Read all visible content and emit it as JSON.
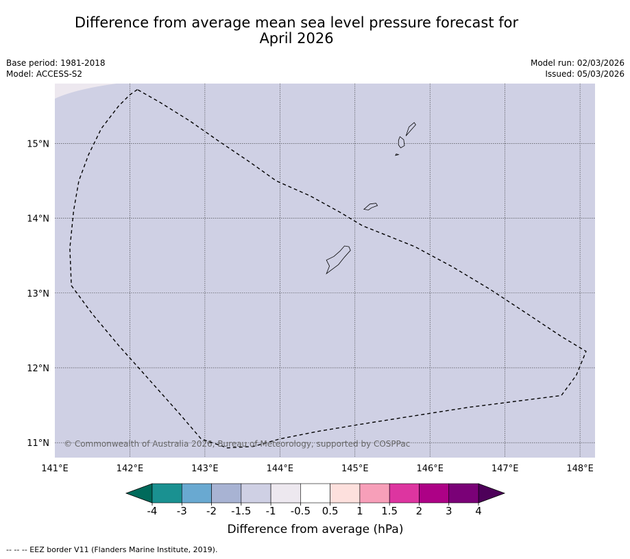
{
  "title_line1": "Difference from average mean sea level pressure forecast for",
  "title_line2": "April 2026",
  "meta_left": {
    "base_period": "Base period: 1981-2018",
    "model": "Model: ACCESS-S2"
  },
  "meta_right": {
    "model_run": "Model run: 02/03/2026",
    "issued": "Issued: 05/03/2026"
  },
  "map": {
    "lon_min": 141.0,
    "lon_max": 148.2,
    "lat_min": 10.8,
    "lat_max": 15.8,
    "lon_ticks": [
      141,
      142,
      143,
      144,
      145,
      146,
      147,
      148
    ],
    "lon_labels": [
      "141°E",
      "142°E",
      "143°E",
      "144°E",
      "145°E",
      "146°E",
      "147°E",
      "148°E"
    ],
    "lat_ticks": [
      15,
      14,
      13,
      12,
      11
    ],
    "lat_labels": [
      "15°N",
      "14°N",
      "13°N",
      "12°N",
      "11°N"
    ],
    "field_color": "#cfd0e4",
    "corner_color": "#ede8ef",
    "eez_border": [
      [
        142.1,
        15.72
      ],
      [
        142.0,
        15.65
      ],
      [
        141.85,
        15.5
      ],
      [
        141.62,
        15.2
      ],
      [
        141.45,
        14.85
      ],
      [
        141.32,
        14.5
      ],
      [
        141.25,
        14.1
      ],
      [
        141.2,
        13.6
      ],
      [
        141.22,
        13.1
      ],
      [
        141.5,
        12.72
      ],
      [
        141.85,
        12.3
      ],
      [
        142.25,
        11.85
      ],
      [
        142.65,
        11.4
      ],
      [
        142.95,
        11.05
      ],
      [
        143.3,
        10.93
      ],
      [
        143.65,
        10.95
      ],
      [
        144.0,
        11.05
      ],
      [
        144.5,
        11.15
      ],
      [
        145.1,
        11.25
      ],
      [
        145.8,
        11.36
      ],
      [
        146.5,
        11.47
      ],
      [
        147.2,
        11.56
      ],
      [
        147.75,
        11.63
      ],
      [
        147.95,
        11.9
      ],
      [
        148.08,
        12.22
      ],
      [
        147.75,
        12.42
      ],
      [
        147.3,
        12.72
      ],
      [
        146.8,
        13.05
      ],
      [
        146.3,
        13.35
      ],
      [
        145.8,
        13.62
      ],
      [
        145.4,
        13.78
      ],
      [
        145.1,
        13.9
      ],
      [
        144.8,
        14.08
      ],
      [
        144.4,
        14.3
      ],
      [
        143.95,
        14.5
      ],
      [
        143.6,
        14.75
      ],
      [
        143.2,
        15.02
      ],
      [
        142.8,
        15.3
      ],
      [
        142.4,
        15.55
      ],
      [
        142.1,
        15.72
      ]
    ],
    "islands": [
      [
        [
          144.62,
          13.26
        ],
        [
          144.78,
          13.38
        ],
        [
          144.86,
          13.48
        ],
        [
          144.94,
          13.57
        ],
        [
          144.92,
          13.62
        ],
        [
          144.86,
          13.63
        ],
        [
          144.8,
          13.56
        ],
        [
          144.72,
          13.49
        ],
        [
          144.62,
          13.44
        ],
        [
          144.66,
          13.36
        ],
        [
          144.62,
          13.26
        ]
      ],
      [
        [
          145.12,
          14.12
        ],
        [
          145.18,
          14.11
        ],
        [
          145.22,
          14.14
        ],
        [
          145.3,
          14.17
        ],
        [
          145.28,
          14.2
        ],
        [
          145.2,
          14.19
        ],
        [
          145.12,
          14.12
        ]
      ],
      [
        [
          145.58,
          14.98
        ],
        [
          145.61,
          14.94
        ],
        [
          145.66,
          14.97
        ],
        [
          145.65,
          15.05
        ],
        [
          145.6,
          15.09
        ],
        [
          145.58,
          15.04
        ],
        [
          145.58,
          14.98
        ]
      ],
      [
        [
          145.68,
          15.1
        ],
        [
          145.74,
          15.17
        ],
        [
          145.81,
          15.25
        ],
        [
          145.79,
          15.28
        ],
        [
          145.72,
          15.22
        ],
        [
          145.68,
          15.1
        ]
      ],
      [
        [
          145.54,
          14.84
        ],
        [
          145.58,
          14.85
        ],
        [
          145.55,
          14.86
        ],
        [
          145.54,
          14.84
        ]
      ]
    ]
  },
  "copyright": "© Commonwealth of Australia 2026, Bureau of Meteorology, supported by COSPPac",
  "colorbar": {
    "title": "Difference from average (hPa)",
    "labels": [
      "-4",
      "-3",
      "-2",
      "-1.5",
      "-1",
      "-0.5",
      "0.5",
      "1",
      "1.5",
      "2",
      "3",
      "4"
    ],
    "under_color": "#006a5b",
    "over_color": "#4d0059",
    "colors": [
      "#1a9191",
      "#69a9d1",
      "#a8b3d3",
      "#cfd0e4",
      "#ede8ef",
      "#ffffff",
      "#fde0dd",
      "#f79fb9",
      "#dd35a0",
      "#ad0186",
      "#7a0177"
    ]
  },
  "footnote": "--  --  -- EEZ border V11 (Flanders Marine Institute, 2019)."
}
